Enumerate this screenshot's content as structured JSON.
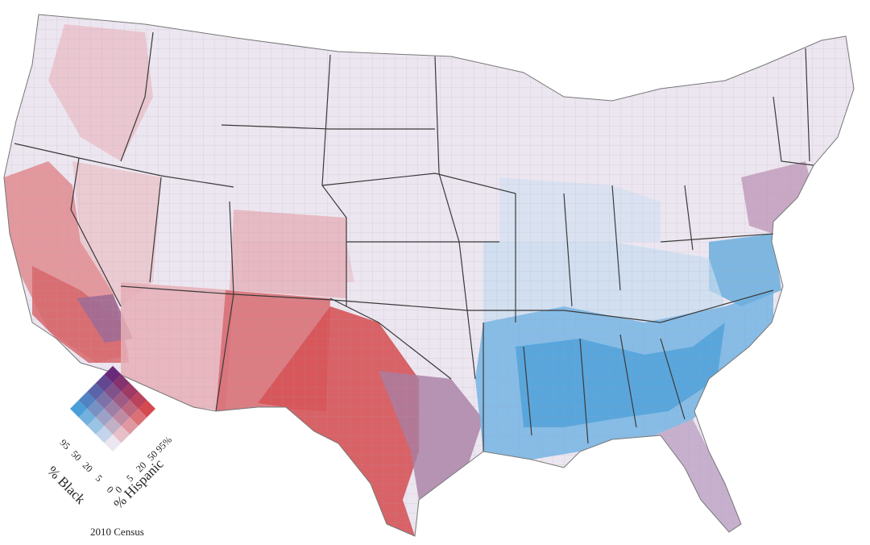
{
  "legend": {
    "black_title": "% Black",
    "hispanic_title": "% Hispanic",
    "black_ticks": [
      "95",
      "50",
      "20",
      "5",
      "0"
    ],
    "hispanic_ticks": [
      "0",
      "5",
      "20",
      "50",
      "95%"
    ]
  },
  "caption": "2010 Census",
  "colors": {
    "neutral": "#ece6f0",
    "hispanic_high": "#d44a4f",
    "black_high": "#4a9fd8",
    "both_high": "#6a2a7a",
    "border": "#3a3a3a",
    "background": "#ffffff"
  }
}
